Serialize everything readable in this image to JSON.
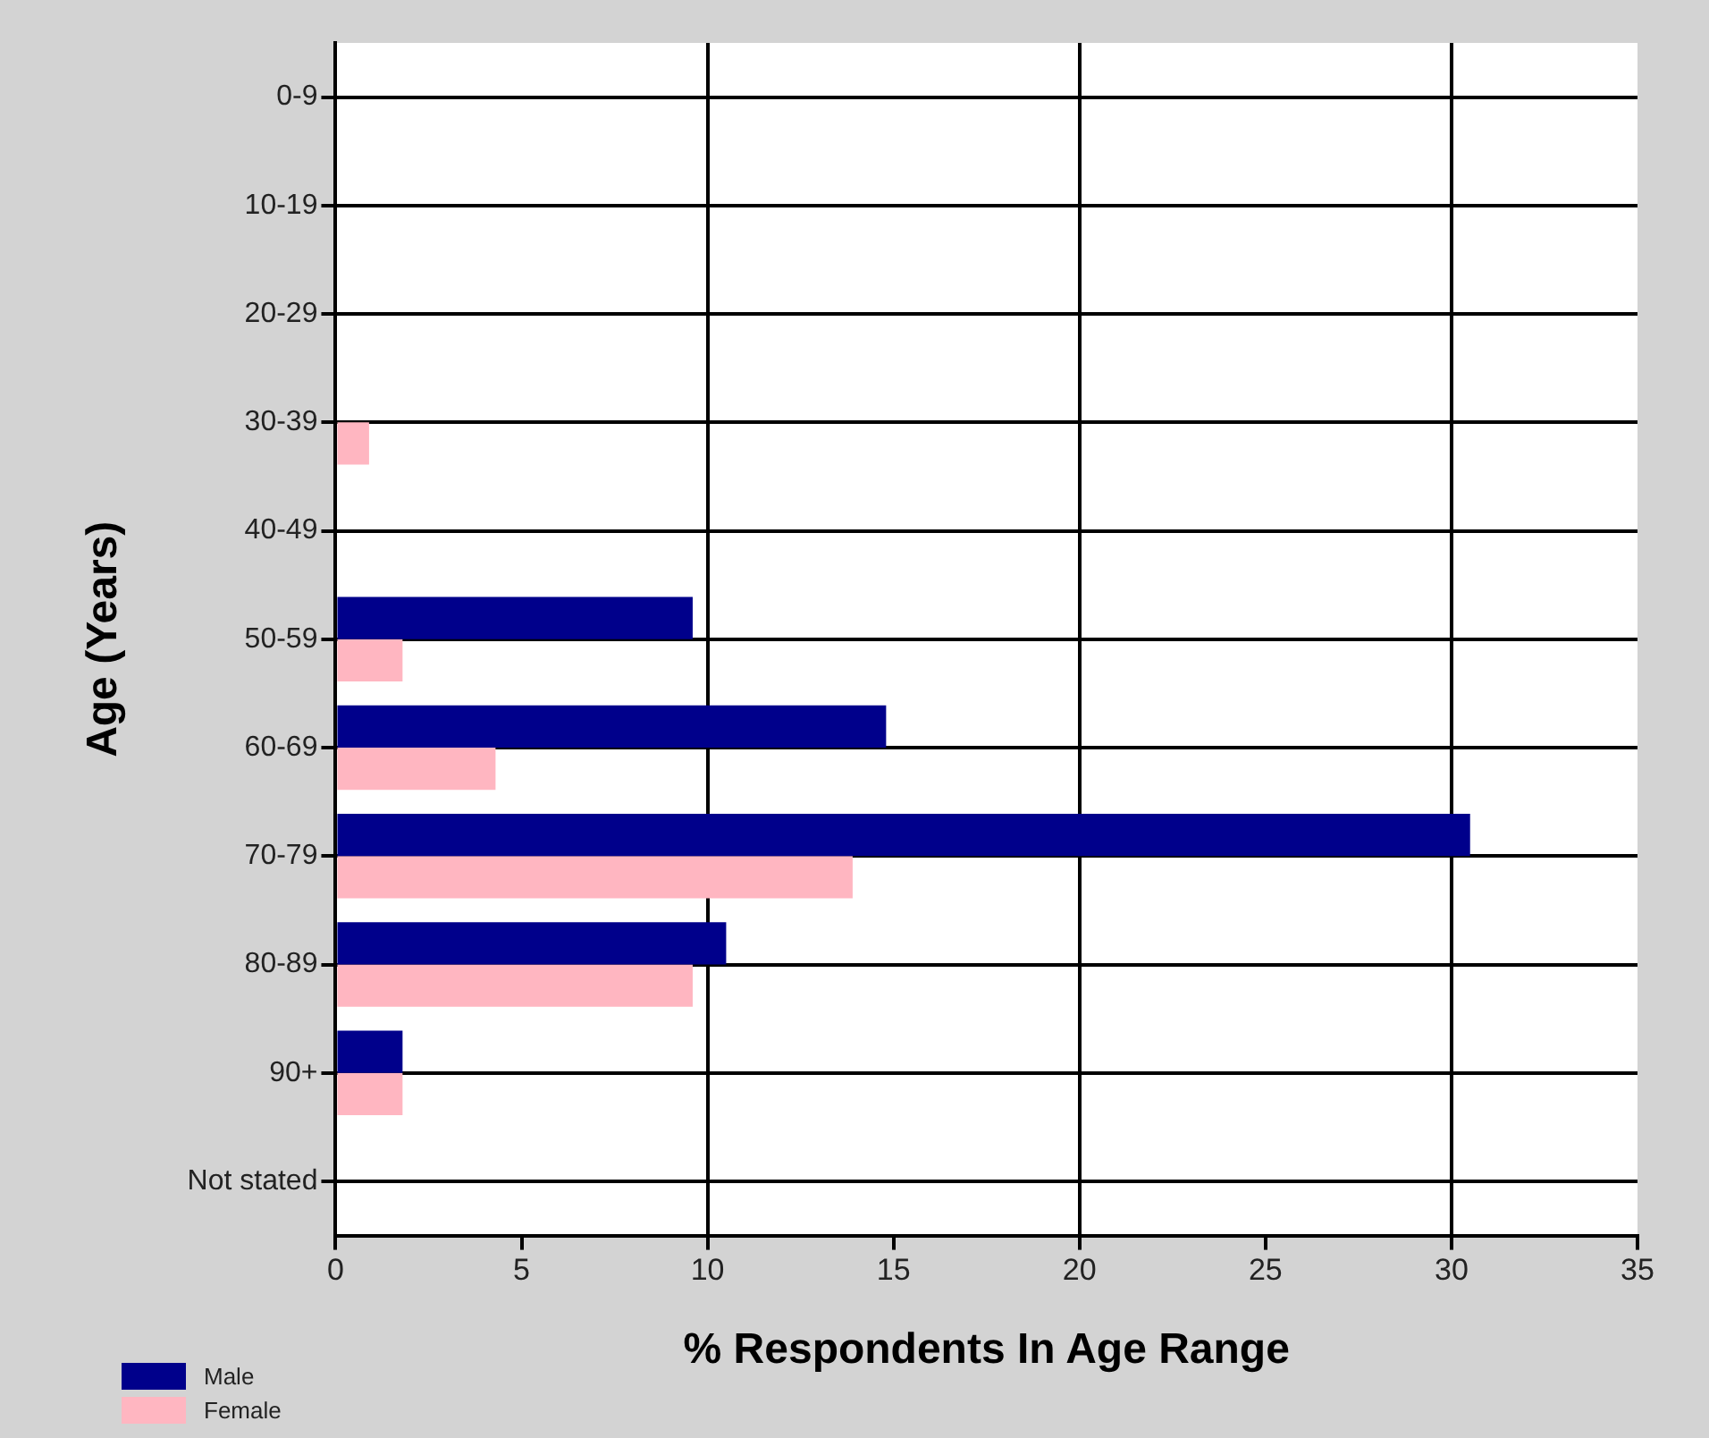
{
  "chart_data": {
    "type": "bar",
    "orientation": "horizontal",
    "xlabel": "% Respondents In Age Range",
    "ylabel": "Age (Years)",
    "categories": [
      "0-9",
      "10-19",
      "20-29",
      "30-39",
      "40-49",
      "50-59",
      "60-69",
      "70-79",
      "80-89",
      "90+",
      "Not stated"
    ],
    "series": [
      {
        "name": "Male",
        "color": "#00008b",
        "values": [
          0,
          0,
          0,
          0,
          0,
          9.6,
          14.8,
          30.5,
          10.5,
          1.8,
          0
        ]
      },
      {
        "name": "Female",
        "color": "#ffb6c1",
        "values": [
          0,
          0,
          0,
          0.9,
          0,
          1.8,
          4.3,
          13.9,
          9.6,
          1.8,
          0
        ]
      }
    ],
    "xlim": [
      0,
      35
    ],
    "xticks": [
      0,
      5,
      10,
      15,
      20,
      25,
      30,
      35
    ],
    "grid": true,
    "legend": "bottom left"
  }
}
